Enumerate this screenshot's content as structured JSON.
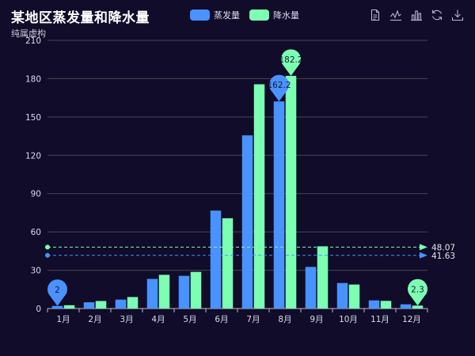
{
  "header": {
    "title": "某地区蒸发量和降水量",
    "subtitle": "纯属虚构"
  },
  "toolbox": {
    "icons": [
      "data-view-icon",
      "line-chart-icon",
      "bar-chart-icon",
      "restore-icon",
      "save-image-icon"
    ]
  },
  "colors": {
    "background": "#100c2a",
    "evaporation": "#4992ff",
    "precipitation": "#7cffb2",
    "grid": "#484753",
    "axis": "#b9b8ce"
  },
  "chart_data": {
    "type": "bar",
    "title": "某地区蒸发量和降水量",
    "subtitle": "纯属虚构",
    "categories": [
      "1月",
      "2月",
      "3月",
      "4月",
      "5月",
      "6月",
      "7月",
      "8月",
      "9月",
      "10月",
      "11月",
      "12月"
    ],
    "series": [
      {
        "name": "蒸发量",
        "color": "#4992ff",
        "values": [
          2.0,
          4.9,
          7.0,
          23.2,
          25.6,
          76.7,
          135.6,
          162.2,
          32.6,
          20.0,
          6.4,
          3.3
        ],
        "mark_points": [
          {
            "label": "162.2",
            "category": "8月",
            "value": 162.2
          },
          {
            "label": "2",
            "category": "1月",
            "value": 2.0
          }
        ],
        "mark_line": {
          "label": "41.63",
          "value": 41.63
        }
      },
      {
        "name": "降水量",
        "color": "#7cffb2",
        "values": [
          2.6,
          5.9,
          9.0,
          26.4,
          28.7,
          70.7,
          175.6,
          182.2,
          48.7,
          18.8,
          6.0,
          2.3
        ],
        "mark_points": [
          {
            "label": "182.2",
            "category": "8月",
            "value": 182.2
          },
          {
            "label": "2.3",
            "category": "12月",
            "value": 2.3
          }
        ],
        "mark_line": {
          "label": "48.07",
          "value": 48.07
        }
      }
    ],
    "yticks": [
      "0",
      "30",
      "60",
      "90",
      "120",
      "150",
      "180",
      "210"
    ],
    "ylim": [
      0,
      210
    ],
    "legend_position": "top-center",
    "grid": true
  }
}
